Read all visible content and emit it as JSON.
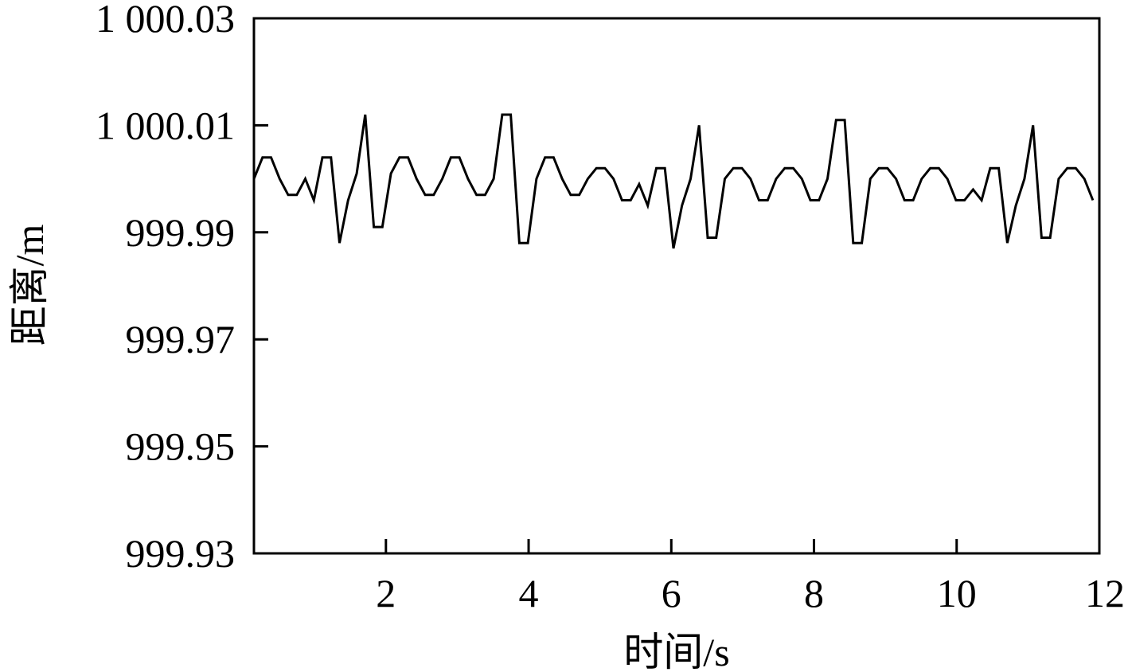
{
  "chart_data": {
    "type": "line",
    "title": "",
    "xlabel": "时间/s",
    "ylabel": "距离/m",
    "xlim": [
      0.15,
      12
    ],
    "ylim": [
      999.93,
      1000.03
    ],
    "xticks": [
      2,
      4,
      6,
      8,
      10,
      12
    ],
    "xtick_labels": [
      "2",
      "4",
      "6",
      "8",
      "10",
      "12"
    ],
    "yticks": [
      999.93,
      999.95,
      999.97,
      999.99,
      1000.01,
      1000.03
    ],
    "ytick_labels": [
      "999.93",
      "999.95",
      "999.97",
      "999.99",
      "1 000.01",
      "1 000.03"
    ],
    "grid": false,
    "line_color": "#000000",
    "series": [
      {
        "name": "",
        "x": [
          0.15,
          0.27,
          0.39,
          0.51,
          0.63,
          0.75,
          0.87,
          0.99,
          1.11,
          1.23,
          1.35,
          1.47,
          1.59,
          1.71,
          1.83,
          1.95,
          2.07,
          2.19,
          2.31,
          2.43,
          2.55,
          2.67,
          2.79,
          2.91,
          3.03,
          3.15,
          3.27,
          3.39,
          3.51,
          3.63,
          3.75,
          3.87,
          3.99,
          4.11,
          4.23,
          4.35,
          4.47,
          4.59,
          4.71,
          4.83,
          4.95,
          5.07,
          5.19,
          5.31,
          5.43,
          5.55,
          5.67,
          5.79,
          5.91,
          6.03,
          6.15,
          6.27,
          6.39,
          6.51,
          6.63,
          6.75,
          6.87,
          6.99,
          7.11,
          7.23,
          7.35,
          7.47,
          7.59,
          7.71,
          7.83,
          7.95,
          8.07,
          8.19,
          8.31,
          8.43,
          8.55,
          8.67,
          8.79,
          8.91,
          9.03,
          9.15,
          9.27,
          9.39,
          9.51,
          9.63,
          9.75,
          9.87,
          9.99,
          10.11,
          10.23,
          10.35,
          10.47,
          10.59,
          10.71,
          10.83,
          10.95,
          11.07,
          11.19,
          11.31,
          11.43,
          11.55,
          11.67,
          11.79,
          11.91
        ],
        "values": [
          1000.0,
          1000.004,
          1000.004,
          1000.0,
          999.997,
          999.997,
          1000.0,
          999.996,
          1000.004,
          1000.004,
          999.988,
          999.996,
          1000.001,
          1000.012,
          999.991,
          999.991,
          1000.001,
          1000.004,
          1000.004,
          1000.0,
          999.997,
          999.997,
          1000.0,
          1000.004,
          1000.004,
          1000.0,
          999.997,
          999.997,
          1000.0,
          1000.012,
          1000.012,
          999.988,
          999.988,
          1000.0,
          1000.004,
          1000.004,
          1000.0,
          999.997,
          999.997,
          1000.0,
          1000.002,
          1000.002,
          1000.0,
          999.996,
          999.996,
          999.999,
          999.995,
          1000.002,
          1000.002,
          999.987,
          999.995,
          1000.0,
          1000.01,
          999.989,
          999.989,
          1000.0,
          1000.002,
          1000.002,
          1000.0,
          999.996,
          999.996,
          1000.0,
          1000.002,
          1000.002,
          1000.0,
          999.996,
          999.996,
          1000.0,
          1000.011,
          1000.011,
          999.988,
          999.988,
          1000.0,
          1000.002,
          1000.002,
          1000.0,
          999.996,
          999.996,
          1000.0,
          1000.002,
          1000.002,
          1000.0,
          999.996,
          999.996,
          999.998,
          999.996,
          1000.002,
          1000.002,
          999.988,
          999.995,
          1000.0,
          1000.01,
          999.989,
          999.989,
          1000.0,
          1000.002,
          1000.002,
          1000.0,
          999.996
        ]
      }
    ]
  }
}
